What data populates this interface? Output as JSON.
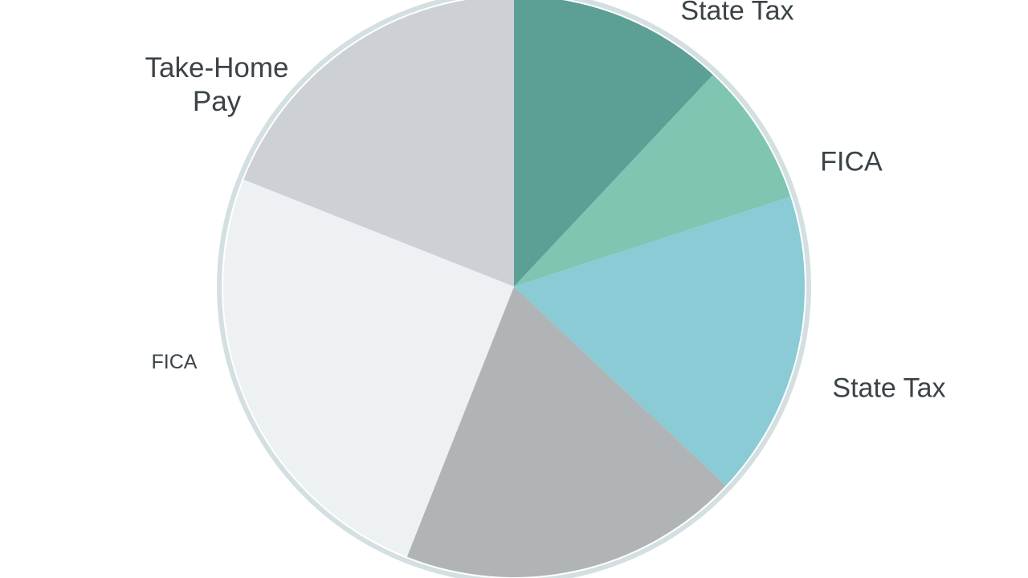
{
  "chart_data": {
    "type": "pie",
    "categories": [
      "State Tax",
      "FICA",
      "State Tax",
      null,
      "FICA",
      "Take-Home Pay"
    ],
    "values": [
      12,
      8,
      17,
      19,
      25,
      19
    ],
    "colors": [
      "#5b9f95",
      "#80c5b2",
      "#8acbd5",
      "#b1b4b7",
      "#edf1f3",
      "#cdd1d5"
    ]
  }
}
